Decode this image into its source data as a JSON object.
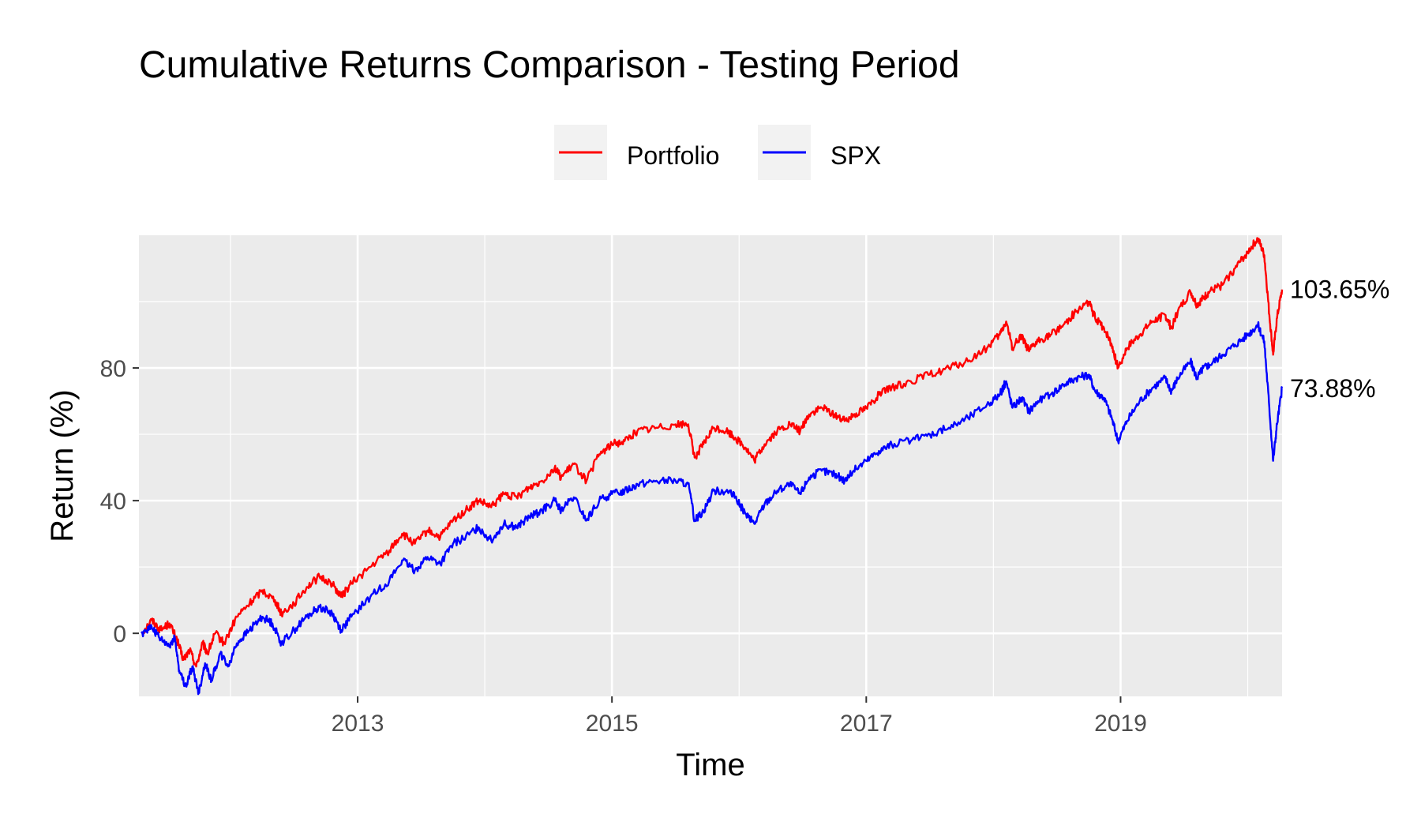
{
  "chart_data": {
    "type": "line",
    "title": "Cumulative Returns Comparison - Testing Period",
    "xlabel": "Time",
    "ylabel": "Return (%)",
    "xlim": [
      2011.28,
      2020.27
    ],
    "ylim": [
      -19,
      120
    ],
    "x_ticks": [
      2013,
      2015,
      2017,
      2019
    ],
    "x_tick_labels": [
      "2013",
      "2015",
      "2017",
      "2019"
    ],
    "x_minor_ticks": [
      2012,
      2014,
      2016,
      2018,
      2020
    ],
    "y_ticks": [
      0,
      40,
      80
    ],
    "y_tick_labels": [
      "0",
      "40",
      "80"
    ],
    "y_minor_ticks": [
      -20,
      20,
      60,
      100
    ],
    "grid": true,
    "legend_position": "top",
    "background": "#ebebeb",
    "series": [
      {
        "name": "Portfolio",
        "color": "#ff0000",
        "end_label": "103.65%",
        "points": [
          [
            2011.3,
            0
          ],
          [
            2011.38,
            4
          ],
          [
            2011.45,
            1
          ],
          [
            2011.52,
            3
          ],
          [
            2011.58,
            -2
          ],
          [
            2011.63,
            -8
          ],
          [
            2011.68,
            -5
          ],
          [
            2011.73,
            -10
          ],
          [
            2011.78,
            -3
          ],
          [
            2011.82,
            -6
          ],
          [
            2011.88,
            0
          ],
          [
            2011.95,
            -3
          ],
          [
            2012.05,
            5
          ],
          [
            2012.15,
            9
          ],
          [
            2012.25,
            13
          ],
          [
            2012.35,
            10
          ],
          [
            2012.4,
            6
          ],
          [
            2012.5,
            9
          ],
          [
            2012.6,
            14
          ],
          [
            2012.7,
            17
          ],
          [
            2012.8,
            15
          ],
          [
            2012.87,
            11
          ],
          [
            2012.95,
            15
          ],
          [
            2013.1,
            20
          ],
          [
            2013.25,
            25
          ],
          [
            2013.35,
            30
          ],
          [
            2013.45,
            27
          ],
          [
            2013.55,
            31
          ],
          [
            2013.65,
            29
          ],
          [
            2013.75,
            34
          ],
          [
            2013.85,
            37
          ],
          [
            2013.95,
            40
          ],
          [
            2014.05,
            38
          ],
          [
            2014.15,
            42
          ],
          [
            2014.25,
            41
          ],
          [
            2014.35,
            44
          ],
          [
            2014.45,
            46
          ],
          [
            2014.55,
            50
          ],
          [
            2014.6,
            47
          ],
          [
            2014.7,
            51
          ],
          [
            2014.8,
            46
          ],
          [
            2014.9,
            54
          ],
          [
            2015.0,
            57
          ],
          [
            2015.1,
            58
          ],
          [
            2015.2,
            61
          ],
          [
            2015.35,
            62
          ],
          [
            2015.5,
            63
          ],
          [
            2015.6,
            63
          ],
          [
            2015.65,
            53
          ],
          [
            2015.72,
            57
          ],
          [
            2015.8,
            62
          ],
          [
            2015.9,
            61
          ],
          [
            2015.97,
            59
          ],
          [
            2016.05,
            56
          ],
          [
            2016.12,
            52
          ],
          [
            2016.2,
            57
          ],
          [
            2016.3,
            61
          ],
          [
            2016.4,
            63
          ],
          [
            2016.48,
            61
          ],
          [
            2016.55,
            66
          ],
          [
            2016.65,
            68
          ],
          [
            2016.75,
            66
          ],
          [
            2016.83,
            64
          ],
          [
            2016.9,
            66
          ],
          [
            2017.0,
            68
          ],
          [
            2017.1,
            72
          ],
          [
            2017.2,
            74
          ],
          [
            2017.35,
            76
          ],
          [
            2017.5,
            78
          ],
          [
            2017.65,
            80
          ],
          [
            2017.8,
            82
          ],
          [
            2017.95,
            86
          ],
          [
            2018.05,
            90
          ],
          [
            2018.1,
            94
          ],
          [
            2018.15,
            86
          ],
          [
            2018.22,
            90
          ],
          [
            2018.28,
            85
          ],
          [
            2018.35,
            88
          ],
          [
            2018.45,
            90
          ],
          [
            2018.55,
            93
          ],
          [
            2018.65,
            97
          ],
          [
            2018.75,
            100
          ],
          [
            2018.8,
            95
          ],
          [
            2018.87,
            92
          ],
          [
            2018.93,
            87
          ],
          [
            2018.98,
            80
          ],
          [
            2019.05,
            86
          ],
          [
            2019.15,
            90
          ],
          [
            2019.25,
            94
          ],
          [
            2019.35,
            96
          ],
          [
            2019.4,
            92
          ],
          [
            2019.45,
            97
          ],
          [
            2019.55,
            103
          ],
          [
            2019.6,
            99
          ],
          [
            2019.65,
            101
          ],
          [
            2019.7,
            103
          ],
          [
            2019.8,
            105
          ],
          [
            2019.9,
            110
          ],
          [
            2020.0,
            115
          ],
          [
            2020.08,
            119
          ],
          [
            2020.13,
            114
          ],
          [
            2020.17,
            96
          ],
          [
            2020.2,
            84
          ],
          [
            2020.23,
            95
          ],
          [
            2020.27,
            103.65
          ]
        ]
      },
      {
        "name": "SPX",
        "color": "#0000ff",
        "end_label": "73.88%",
        "points": [
          [
            2011.3,
            0
          ],
          [
            2011.38,
            2
          ],
          [
            2011.45,
            -2
          ],
          [
            2011.52,
            -4
          ],
          [
            2011.56,
            -1
          ],
          [
            2011.6,
            -12
          ],
          [
            2011.65,
            -16
          ],
          [
            2011.7,
            -10
          ],
          [
            2011.75,
            -18
          ],
          [
            2011.8,
            -9
          ],
          [
            2011.85,
            -14
          ],
          [
            2011.92,
            -6
          ],
          [
            2011.98,
            -10
          ],
          [
            2012.05,
            -3
          ],
          [
            2012.15,
            1
          ],
          [
            2012.25,
            5
          ],
          [
            2012.33,
            3
          ],
          [
            2012.4,
            -3
          ],
          [
            2012.5,
            1
          ],
          [
            2012.6,
            5
          ],
          [
            2012.7,
            8
          ],
          [
            2012.8,
            6
          ],
          [
            2012.87,
            1
          ],
          [
            2012.95,
            5
          ],
          [
            2013.1,
            11
          ],
          [
            2013.25,
            16
          ],
          [
            2013.35,
            22
          ],
          [
            2013.45,
            19
          ],
          [
            2013.55,
            23
          ],
          [
            2013.65,
            21
          ],
          [
            2013.75,
            27
          ],
          [
            2013.85,
            29
          ],
          [
            2013.95,
            32
          ],
          [
            2014.05,
            28
          ],
          [
            2014.15,
            33
          ],
          [
            2014.25,
            32
          ],
          [
            2014.35,
            35
          ],
          [
            2014.45,
            37
          ],
          [
            2014.55,
            40
          ],
          [
            2014.6,
            37
          ],
          [
            2014.7,
            41
          ],
          [
            2014.8,
            34
          ],
          [
            2014.9,
            40
          ],
          [
            2015.0,
            42
          ],
          [
            2015.1,
            43
          ],
          [
            2015.2,
            45
          ],
          [
            2015.35,
            46
          ],
          [
            2015.5,
            46
          ],
          [
            2015.6,
            45
          ],
          [
            2015.65,
            34
          ],
          [
            2015.72,
            37
          ],
          [
            2015.8,
            43
          ],
          [
            2015.9,
            43
          ],
          [
            2015.97,
            41
          ],
          [
            2016.05,
            36
          ],
          [
            2016.12,
            33
          ],
          [
            2016.2,
            39
          ],
          [
            2016.3,
            43
          ],
          [
            2016.4,
            45
          ],
          [
            2016.48,
            42
          ],
          [
            2016.55,
            47
          ],
          [
            2016.65,
            49
          ],
          [
            2016.75,
            48
          ],
          [
            2016.83,
            46
          ],
          [
            2016.9,
            49
          ],
          [
            2017.0,
            52
          ],
          [
            2017.1,
            55
          ],
          [
            2017.2,
            57
          ],
          [
            2017.35,
            58
          ],
          [
            2017.5,
            60
          ],
          [
            2017.65,
            62
          ],
          [
            2017.8,
            65
          ],
          [
            2017.95,
            69
          ],
          [
            2018.05,
            72
          ],
          [
            2018.1,
            76
          ],
          [
            2018.15,
            68
          ],
          [
            2018.22,
            71
          ],
          [
            2018.28,
            67
          ],
          [
            2018.35,
            70
          ],
          [
            2018.45,
            72
          ],
          [
            2018.55,
            75
          ],
          [
            2018.65,
            77
          ],
          [
            2018.75,
            78
          ],
          [
            2018.8,
            73
          ],
          [
            2018.87,
            71
          ],
          [
            2018.93,
            65
          ],
          [
            2018.98,
            58
          ],
          [
            2019.05,
            64
          ],
          [
            2019.15,
            70
          ],
          [
            2019.25,
            74
          ],
          [
            2019.35,
            77
          ],
          [
            2019.4,
            73
          ],
          [
            2019.45,
            77
          ],
          [
            2019.55,
            82
          ],
          [
            2019.6,
            77
          ],
          [
            2019.65,
            80
          ],
          [
            2019.7,
            81
          ],
          [
            2019.8,
            84
          ],
          [
            2019.9,
            87
          ],
          [
            2020.0,
            90
          ],
          [
            2020.08,
            93
          ],
          [
            2020.13,
            88
          ],
          [
            2020.17,
            68
          ],
          [
            2020.2,
            52
          ],
          [
            2020.23,
            63
          ],
          [
            2020.27,
            73.88
          ]
        ]
      }
    ]
  }
}
